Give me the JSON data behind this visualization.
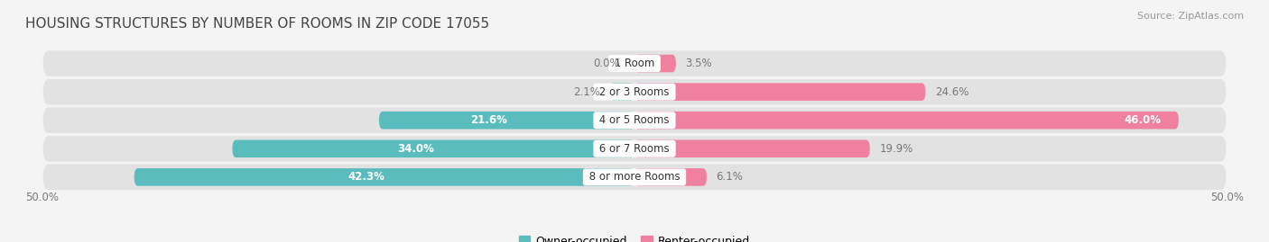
{
  "title": "HOUSING STRUCTURES BY NUMBER OF ROOMS IN ZIP CODE 17055",
  "source": "Source: ZipAtlas.com",
  "categories": [
    "1 Room",
    "2 or 3 Rooms",
    "4 or 5 Rooms",
    "6 or 7 Rooms",
    "8 or more Rooms"
  ],
  "owner_values": [
    0.0,
    2.1,
    21.6,
    34.0,
    42.3
  ],
  "renter_values": [
    3.5,
    24.6,
    46.0,
    19.9,
    6.1
  ],
  "owner_color": "#5bbcbe",
  "renter_color": "#f080a0",
  "label_color": "#777777",
  "background_color": "#f4f4f4",
  "bar_background": "#e2e2e2",
  "max_value": 50.0,
  "axis_label_left": "50.0%",
  "axis_label_right": "50.0%",
  "bar_height": 0.62,
  "title_fontsize": 11,
  "source_fontsize": 8,
  "label_fontsize": 8.5,
  "category_fontsize": 8.5,
  "legend_fontsize": 9
}
